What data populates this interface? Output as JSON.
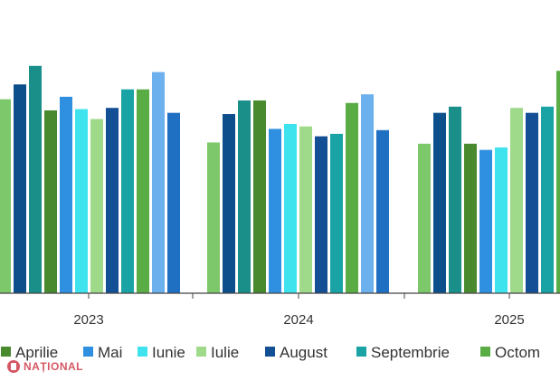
{
  "chart_data": {
    "type": "bar",
    "categories": [
      "2023",
      "2024",
      "2025"
    ],
    "ylim": [
      0,
      230
    ],
    "grid": false,
    "legend_position": "bottom",
    "series": [
      {
        "name": "",
        "color": "#7dc86a",
        "values": [
          157,
          null,
          null
        ]
      },
      {
        "name": "",
        "color": "#0d4f8b",
        "values": [
          169,
          null,
          null
        ]
      },
      {
        "name": "",
        "color": "#1a8f8a",
        "values": [
          184,
          null,
          null
        ]
      },
      {
        "name": "Aprilie",
        "color": "#4a8a2e",
        "values": [
          148,
          156,
          121
        ]
      },
      {
        "name": "Mai",
        "color": "#2f8fe0",
        "values": [
          159,
          133,
          116
        ]
      },
      {
        "name": "Iunie",
        "color": "#3fe3ee",
        "values": [
          149,
          137,
          118
        ]
      },
      {
        "name": "Iulie",
        "color": "#9fd98a",
        "values": [
          141,
          135,
          150
        ]
      },
      {
        "name": "August",
        "color": "#134f94",
        "values": [
          150,
          127,
          146
        ]
      },
      {
        "name": "Septembrie",
        "color": "#1aa3a5",
        "values": [
          165,
          129,
          151
        ]
      },
      {
        "name": "Octombrie",
        "color": "#5aad45",
        "values": [
          165,
          154,
          180
        ]
      },
      {
        "name": "",
        "color": "#6cb0ee",
        "values": [
          179,
          161,
          null
        ]
      },
      {
        "name": "",
        "color": "#1f6fc2",
        "values": [
          146,
          132,
          null
        ]
      },
      {
        "name": "",
        "color": "#7dc86a",
        "values": [
          null,
          122,
          null
        ]
      },
      {
        "name": "",
        "color": "#0d4f8b",
        "values": [
          null,
          145,
          null
        ]
      },
      {
        "name": "",
        "color": "#1a8f8a",
        "values": [
          null,
          156,
          null
        ]
      }
    ],
    "legend": [
      "Aprilie",
      "Mai",
      "Iunie",
      "Iulie",
      "August",
      "Septembrie",
      "Octombrie"
    ],
    "legend_visible_text": [
      "Aprilie",
      "Mai",
      "Iunie",
      "Iulie",
      "August",
      "Septembrie",
      "Octom"
    ]
  },
  "watermark": {
    "text": "NAȚIONAL"
  }
}
